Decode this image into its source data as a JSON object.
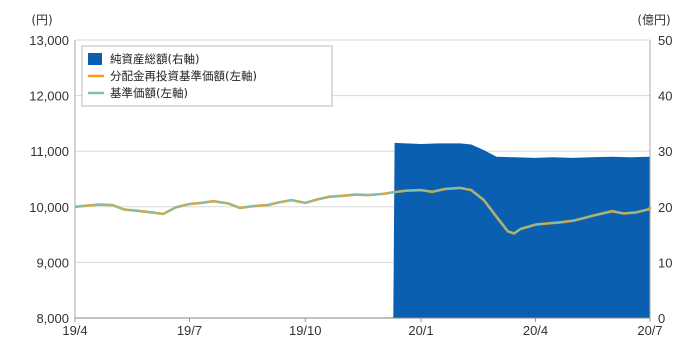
{
  "chart_data": {
    "type": "line",
    "title": "",
    "y_left_unit": "(円)",
    "y_right_unit": "(億円)",
    "y_left_ticks": [
      "13,000",
      "12,000",
      "11,000",
      "10,000",
      "9,000",
      "8,000"
    ],
    "y_right_ticks": [
      "50",
      "40",
      "30",
      "20",
      "10",
      "0"
    ],
    "y_left_range": [
      8000,
      13000
    ],
    "y_right_range": [
      0,
      50
    ],
    "x_ticks": [
      "19/4",
      "19/7",
      "19/10",
      "20/1",
      "20/4",
      "20/7"
    ],
    "grid": true,
    "legend_position": "top-left",
    "series": [
      {
        "name": "純資産総額(右軸)",
        "type": "area",
        "axis": "right",
        "color": "#0b5fb0",
        "points": [
          [
            "2019-04-01",
            0
          ],
          [
            "2019-11-01",
            0
          ],
          [
            "2019-12-10",
            0.1
          ],
          [
            "2019-12-11",
            31.5
          ],
          [
            "2019-12-20",
            31.4
          ],
          [
            "2020-01-01",
            31.3
          ],
          [
            "2020-01-15",
            31.4
          ],
          [
            "2020-02-01",
            31.4
          ],
          [
            "2020-02-10",
            31.2
          ],
          [
            "2020-02-20",
            30.2
          ],
          [
            "2020-03-01",
            29.0
          ],
          [
            "2020-03-15",
            28.9
          ],
          [
            "2020-04-01",
            28.8
          ],
          [
            "2020-04-15",
            28.9
          ],
          [
            "2020-05-01",
            28.8
          ],
          [
            "2020-05-15",
            28.9
          ],
          [
            "2020-06-01",
            29.0
          ],
          [
            "2020-06-15",
            28.9
          ],
          [
            "2020-07-01",
            29.0
          ],
          [
            "2020-07-10",
            28.9
          ]
        ]
      },
      {
        "name": "分配金再投資基準価額(左軸)",
        "type": "line",
        "axis": "left",
        "color": "#f39c12",
        "points": [
          [
            "2019-04-01",
            10000
          ],
          [
            "2019-04-10",
            10020
          ],
          [
            "2019-04-20",
            10040
          ],
          [
            "2019-05-01",
            10030
          ],
          [
            "2019-05-10",
            9950
          ],
          [
            "2019-05-20",
            9930
          ],
          [
            "2019-06-01",
            9900
          ],
          [
            "2019-06-10",
            9870
          ],
          [
            "2019-06-20",
            9990
          ],
          [
            "2019-07-01",
            10050
          ],
          [
            "2019-07-10",
            10070
          ],
          [
            "2019-07-20",
            10100
          ],
          [
            "2019-08-01",
            10060
          ],
          [
            "2019-08-10",
            9980
          ],
          [
            "2019-08-20",
            10010
          ],
          [
            "2019-09-01",
            10030
          ],
          [
            "2019-09-10",
            10080
          ],
          [
            "2019-09-20",
            10120
          ],
          [
            "2019-10-01",
            10070
          ],
          [
            "2019-10-10",
            10130
          ],
          [
            "2019-10-20",
            10180
          ],
          [
            "2019-11-01",
            10200
          ],
          [
            "2019-11-10",
            10220
          ],
          [
            "2019-11-20",
            10210
          ],
          [
            "2019-12-01",
            10230
          ],
          [
            "2019-12-10",
            10260
          ],
          [
            "2019-12-20",
            10290
          ],
          [
            "2020-01-01",
            10300
          ],
          [
            "2020-01-10",
            10270
          ],
          [
            "2020-01-20",
            10320
          ],
          [
            "2020-02-01",
            10340
          ],
          [
            "2020-02-10",
            10300
          ],
          [
            "2020-02-20",
            10120
          ],
          [
            "2020-03-01",
            9820
          ],
          [
            "2020-03-10",
            9560
          ],
          [
            "2020-03-15",
            9520
          ],
          [
            "2020-03-20",
            9600
          ],
          [
            "2020-04-01",
            9680
          ],
          [
            "2020-04-10",
            9700
          ],
          [
            "2020-04-20",
            9720
          ],
          [
            "2020-05-01",
            9750
          ],
          [
            "2020-05-10",
            9800
          ],
          [
            "2020-05-20",
            9860
          ],
          [
            "2020-06-01",
            9920
          ],
          [
            "2020-06-10",
            9880
          ],
          [
            "2020-06-20",
            9900
          ],
          [
            "2020-07-01",
            9960
          ],
          [
            "2020-07-10",
            10000
          ]
        ]
      },
      {
        "name": "基準価額(左軸)",
        "type": "line",
        "axis": "left",
        "color": "#7fbfb0",
        "points": [
          [
            "2019-04-01",
            10000
          ],
          [
            "2019-04-10",
            10020
          ],
          [
            "2019-04-20",
            10040
          ],
          [
            "2019-05-01",
            10030
          ],
          [
            "2019-05-10",
            9950
          ],
          [
            "2019-05-20",
            9930
          ],
          [
            "2019-06-01",
            9900
          ],
          [
            "2019-06-10",
            9870
          ],
          [
            "2019-06-20",
            9990
          ],
          [
            "2019-07-01",
            10050
          ],
          [
            "2019-07-10",
            10070
          ],
          [
            "2019-07-20",
            10100
          ],
          [
            "2019-08-01",
            10060
          ],
          [
            "2019-08-10",
            9980
          ],
          [
            "2019-08-20",
            10010
          ],
          [
            "2019-09-01",
            10030
          ],
          [
            "2019-09-10",
            10080
          ],
          [
            "2019-09-20",
            10120
          ],
          [
            "2019-10-01",
            10070
          ],
          [
            "2019-10-10",
            10130
          ],
          [
            "2019-10-20",
            10180
          ],
          [
            "2019-11-01",
            10200
          ],
          [
            "2019-11-10",
            10220
          ],
          [
            "2019-11-20",
            10210
          ],
          [
            "2019-12-01",
            10230
          ],
          [
            "2019-12-10",
            10260
          ],
          [
            "2019-12-20",
            10290
          ],
          [
            "2020-01-01",
            10300
          ],
          [
            "2020-01-10",
            10270
          ],
          [
            "2020-01-20",
            10320
          ],
          [
            "2020-02-01",
            10340
          ],
          [
            "2020-02-10",
            10300
          ],
          [
            "2020-02-20",
            10120
          ],
          [
            "2020-03-01",
            9820
          ],
          [
            "2020-03-10",
            9560
          ],
          [
            "2020-03-15",
            9520
          ],
          [
            "2020-03-20",
            9600
          ],
          [
            "2020-04-01",
            9680
          ],
          [
            "2020-04-10",
            9700
          ],
          [
            "2020-04-20",
            9720
          ],
          [
            "2020-05-01",
            9750
          ],
          [
            "2020-05-10",
            9800
          ],
          [
            "2020-05-20",
            9860
          ],
          [
            "2020-06-01",
            9920
          ],
          [
            "2020-06-10",
            9880
          ],
          [
            "2020-06-20",
            9900
          ],
          [
            "2020-07-01",
            9960
          ],
          [
            "2020-07-10",
            10000
          ]
        ]
      }
    ]
  }
}
